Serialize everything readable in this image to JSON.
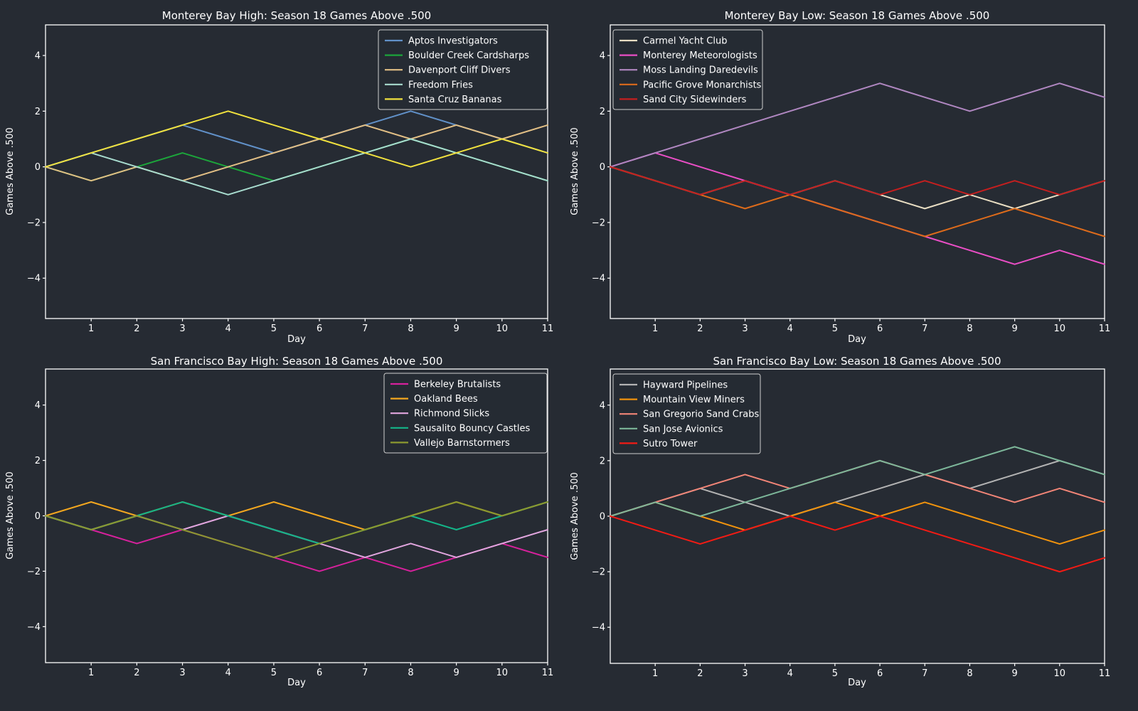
{
  "figure": {
    "background_color": "#262b33",
    "text_color": "#ffffff",
    "spine_color": "#ffffff"
  },
  "chart_data": [
    {
      "type": "line",
      "title": "Monterey Bay High: Season 18 Games Above .500",
      "xlabel": "Day",
      "ylabel": "Games Above .500",
      "x": [
        0,
        1,
        2,
        3,
        4,
        5,
        6,
        7,
        8,
        9,
        10,
        11
      ],
      "xticks": [
        1,
        2,
        3,
        4,
        5,
        6,
        7,
        8,
        9,
        10,
        11
      ],
      "yticks": [
        -4,
        -2,
        0,
        2,
        4
      ],
      "ylim": [
        -5.45,
        5.1
      ],
      "grid": false,
      "legend_position": "upper-right",
      "series": [
        {
          "name": "Aptos Investigators",
          "color": "#6191c9",
          "values": [
            0,
            0.5,
            1,
            1.5,
            1,
            0.5,
            1,
            1.5,
            2,
            1.5,
            1,
            0.5
          ]
        },
        {
          "name": "Boulder Creek Cardsharps",
          "color": "#1ca53b",
          "values": [
            0,
            -0.5,
            0,
            0.5,
            0,
            -0.5,
            0,
            0.5,
            1,
            0.5,
            0,
            -0.5
          ]
        },
        {
          "name": "Davenport Cliff Divers",
          "color": "#e2bf85",
          "values": [
            0,
            -0.5,
            0,
            -0.5,
            0,
            0.5,
            1,
            1.5,
            1,
            1.5,
            1,
            1.5
          ]
        },
        {
          "name": "Freedom Fries",
          "color": "#a8dccf",
          "values": [
            0,
            0.5,
            0,
            -0.5,
            -1,
            -0.5,
            0,
            0.5,
            1,
            0.5,
            0,
            -0.5
          ]
        },
        {
          "name": "Santa Cruz Bananas",
          "color": "#f0e13e",
          "values": [
            0,
            0.5,
            1,
            1.5,
            2,
            1.5,
            1,
            0.5,
            0,
            0.5,
            1,
            0.5
          ]
        }
      ]
    },
    {
      "type": "line",
      "title": "Monterey Bay Low: Season 18 Games Above .500",
      "xlabel": "Day",
      "ylabel": "Games Above .500",
      "x": [
        0,
        1,
        2,
        3,
        4,
        5,
        6,
        7,
        8,
        9,
        10,
        11
      ],
      "xticks": [
        1,
        2,
        3,
        4,
        5,
        6,
        7,
        8,
        9,
        10,
        11
      ],
      "yticks": [
        -4,
        -2,
        0,
        2,
        4
      ],
      "ylim": [
        -5.45,
        5.1
      ],
      "grid": false,
      "legend_position": "upper-left",
      "series": [
        {
          "name": "Carmel Yacht Club",
          "color": "#e9dec3",
          "values": [
            0,
            -0.5,
            -1,
            -0.5,
            -1,
            -0.5,
            -1,
            -1.5,
            -1,
            -1.5,
            -1,
            -0.5
          ]
        },
        {
          "name": "Monterey Meteorologists",
          "color": "#ea4ec6",
          "values": [
            0,
            0.5,
            0,
            -0.5,
            -1,
            -1.5,
            -2,
            -2.5,
            -3,
            -3.5,
            -3,
            -3.5
          ]
        },
        {
          "name": "Moss Landing Daredevils",
          "color": "#b087c1",
          "values": [
            0,
            0.5,
            1,
            1.5,
            2,
            2.5,
            3,
            2.5,
            2,
            2.5,
            3,
            2.5
          ]
        },
        {
          "name": "Pacific Grove Monarchists",
          "color": "#dd6b1b",
          "values": [
            0,
            -0.5,
            -1,
            -1.5,
            -1,
            -1.5,
            -2,
            -2.5,
            -2,
            -1.5,
            -2,
            -2.5
          ]
        },
        {
          "name": "Sand City Sidewinders",
          "color": "#c51f1f",
          "values": [
            0,
            -0.5,
            -1,
            -0.5,
            -1,
            -0.5,
            -1,
            -0.5,
            -1,
            -0.5,
            -1,
            -0.5
          ]
        }
      ]
    },
    {
      "type": "line",
      "title": "San Francisco Bay High: Season 18 Games Above .500",
      "xlabel": "Day",
      "ylabel": "Games Above .500",
      "x": [
        0,
        1,
        2,
        3,
        4,
        5,
        6,
        7,
        8,
        9,
        10,
        11
      ],
      "xticks": [
        1,
        2,
        3,
        4,
        5,
        6,
        7,
        8,
        9,
        10,
        11
      ],
      "yticks": [
        -4,
        -2,
        0,
        2,
        4
      ],
      "ylim": [
        -5.3,
        5.3
      ],
      "grid": false,
      "legend_position": "upper-right",
      "series": [
        {
          "name": "Berkeley Brutalists",
          "color": "#d6219c",
          "values": [
            0,
            -0.5,
            -1,
            -0.5,
            -1,
            -1.5,
            -2,
            -1.5,
            -2,
            -1.5,
            -1,
            -1.5
          ]
        },
        {
          "name": "Oakland Bees",
          "color": "#f3a71f",
          "values": [
            0,
            0.5,
            0,
            0.5,
            0,
            0.5,
            0,
            -0.5,
            0,
            0.5,
            0,
            0.5
          ]
        },
        {
          "name": "Richmond Slicks",
          "color": "#e2a6df",
          "values": [
            0,
            -0.5,
            0,
            -0.5,
            0,
            -0.5,
            -1,
            -1.5,
            -1,
            -1.5,
            -1,
            -0.5
          ]
        },
        {
          "name": "Sausalito Bouncy Castles",
          "color": "#14b589",
          "values": [
            0,
            -0.5,
            0,
            0.5,
            0,
            -0.5,
            -1,
            -0.5,
            0,
            -0.5,
            0,
            0.5
          ]
        },
        {
          "name": "Vallejo Barnstormers",
          "color": "#8b992f",
          "values": [
            0,
            -0.5,
            0,
            -0.5,
            -1,
            -1.5,
            -1,
            -0.5,
            0,
            0.5,
            0,
            0.5
          ]
        }
      ]
    },
    {
      "type": "line",
      "title": "San Francisco Bay Low: Season 18 Games Above .500",
      "xlabel": "Day",
      "ylabel": "Games Above .500",
      "x": [
        0,
        1,
        2,
        3,
        4,
        5,
        6,
        7,
        8,
        9,
        10,
        11
      ],
      "xticks": [
        1,
        2,
        3,
        4,
        5,
        6,
        7,
        8,
        9,
        10,
        11
      ],
      "yticks": [
        -4,
        -2,
        0,
        2,
        4
      ],
      "ylim": [
        -5.3,
        5.3
      ],
      "grid": false,
      "legend_position": "upper-left",
      "series": [
        {
          "name": "Hayward Pipelines",
          "color": "#b3b3b3",
          "values": [
            0,
            0.5,
            1,
            0.5,
            0,
            0.5,
            1,
            1.5,
            1,
            1.5,
            2,
            1.5
          ]
        },
        {
          "name": "Mountain View Miners",
          "color": "#f1930d",
          "values": [
            0,
            0.5,
            0,
            -0.5,
            0,
            0.5,
            0,
            0.5,
            0,
            -0.5,
            -1,
            -0.5
          ]
        },
        {
          "name": "San Gregorio Sand Crabs",
          "color": "#f28577",
          "values": [
            0,
            0.5,
            1,
            1.5,
            1,
            1.5,
            2,
            1.5,
            1,
            0.5,
            1,
            0.5
          ]
        },
        {
          "name": "San Jose Avionics",
          "color": "#7db79a",
          "values": [
            0,
            0.5,
            0,
            0.5,
            1,
            1.5,
            2,
            1.5,
            2,
            2.5,
            2,
            1.5
          ]
        },
        {
          "name": "Sutro Tower",
          "color": "#f31b14",
          "values": [
            0,
            -0.5,
            -1,
            -0.5,
            0,
            -0.5,
            0,
            -0.5,
            -1,
            -1.5,
            -2,
            -1.5
          ]
        }
      ]
    }
  ]
}
